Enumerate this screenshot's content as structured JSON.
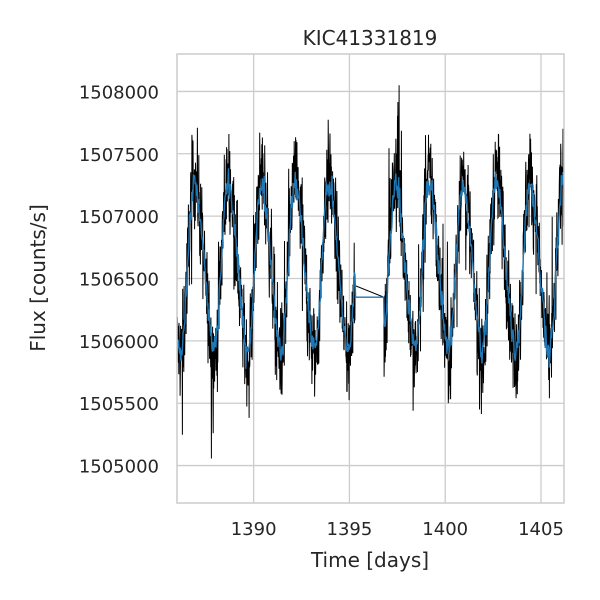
{
  "chart_data": {
    "type": "line",
    "title": "KIC41331819",
    "xlabel": "Time [days]",
    "ylabel": "Flux [counts/s]",
    "xlim": [
      1386,
      1406.2
    ],
    "ylim": [
      1504700,
      1508300
    ],
    "xticks": [
      1390,
      1395,
      1400,
      1405
    ],
    "yticks": [
      1505000,
      1505500,
      1506000,
      1506500,
      1507000,
      1507500,
      1508000
    ],
    "grid": true,
    "legend": "none",
    "gap": [
      1395.3,
      1396.8
    ],
    "gap_flux": 1506350,
    "series": [
      {
        "kind": "raw",
        "color": "#000000",
        "description_signal": "periodic oscillation ~1.75 day period, amplitude ~700 counts/s with noise",
        "mean": 1506600,
        "amplitude": 700,
        "period": 1.75,
        "noise": 220
      },
      {
        "kind": "smoothed",
        "color": "#1f77b4",
        "mean": 1506600,
        "amplitude": 650,
        "period": 1.75
      }
    ],
    "colors": {
      "raw": "#000000",
      "smoothed": "#1f77b4",
      "grid": "#cccccc",
      "frame": "#cccccc"
    }
  }
}
